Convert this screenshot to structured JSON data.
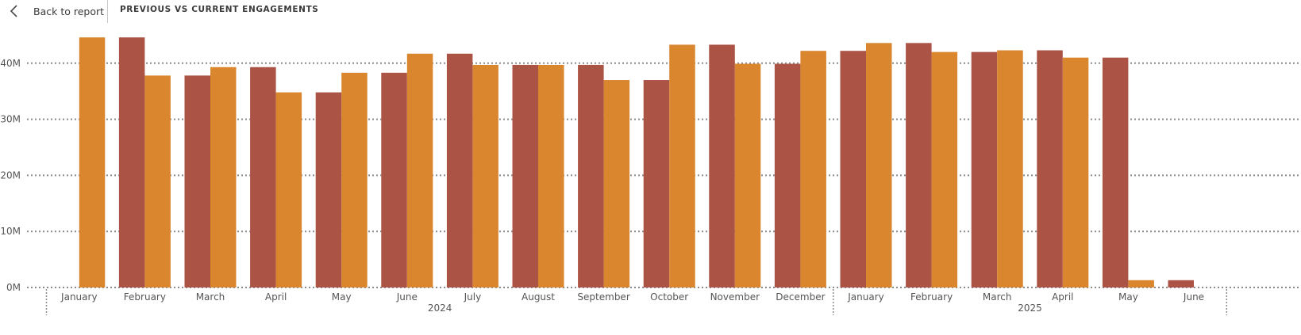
{
  "header": {
    "back_label": "Back to report",
    "back_icon": "chevron-left-icon",
    "title": "PREVIOUS VS CURRENT ENGAGEMENTS"
  },
  "chart_data": {
    "type": "bar",
    "grid": true,
    "ylim": [
      0,
      45
    ],
    "y_unit_suffix": "M",
    "y_ticks": [
      "0M",
      "10M",
      "20M",
      "30M",
      "40M"
    ],
    "y_tick_values": [
      0,
      10,
      20,
      30,
      40
    ],
    "categories": [
      "January",
      "February",
      "March",
      "April",
      "May",
      "June",
      "July",
      "August",
      "September",
      "October",
      "November",
      "December",
      "January",
      "February",
      "March",
      "April",
      "May",
      "June"
    ],
    "years": [
      {
        "label": "2024",
        "count": 12
      },
      {
        "label": "2025",
        "count": 6
      }
    ],
    "series": [
      {
        "color": "#ab5345",
        "values": [
          null,
          44.6,
          37.8,
          39.3,
          34.8,
          38.3,
          41.7,
          39.7,
          39.7,
          37.0,
          43.3,
          39.9,
          42.2,
          43.6,
          42.0,
          42.3,
          41.0,
          1.3
        ]
      },
      {
        "color": "#d9862f",
        "values": [
          44.6,
          37.8,
          39.3,
          34.8,
          38.3,
          41.7,
          39.7,
          39.7,
          37.0,
          43.3,
          39.9,
          42.2,
          43.6,
          42.0,
          42.3,
          41.0,
          1.3,
          null
        ]
      }
    ]
  }
}
